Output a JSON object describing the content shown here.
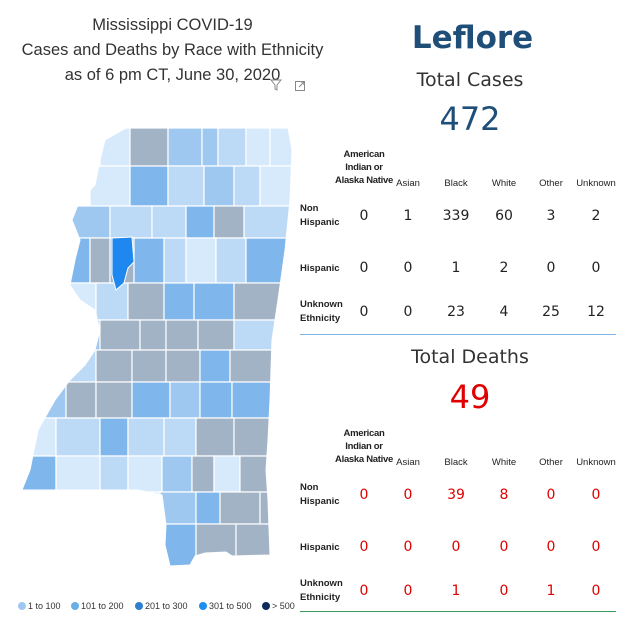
{
  "title": {
    "line1": "Mississippi COVID-19",
    "line2": "Cases and Deaths by Race with Ethnicity",
    "line3": "as of 6 pm CT, June 30, 2020"
  },
  "county": "Leflore",
  "cases": {
    "heading": "Total Cases",
    "total": "472",
    "color": "#1f4e79",
    "columns": [
      "American Indian or Alaska Native",
      "Asian",
      "Black",
      "White",
      "Other",
      "Unknown"
    ],
    "rows": [
      {
        "label": "Non Hispanic",
        "values": [
          "0",
          "1",
          "339",
          "60",
          "3",
          "2"
        ]
      },
      {
        "label": "Hispanic",
        "values": [
          "0",
          "0",
          "1",
          "2",
          "0",
          "0"
        ]
      },
      {
        "label": "Unknown Ethnicity",
        "values": [
          "0",
          "0",
          "23",
          "4",
          "25",
          "12"
        ]
      }
    ]
  },
  "deaths": {
    "heading": "Total Deaths",
    "total": "49",
    "color": "#e00000",
    "columns": [
      "American Indian or Alaska Native",
      "Asian",
      "Black",
      "White",
      "Other",
      "Unknown"
    ],
    "rows": [
      {
        "label": "Non Hispanic",
        "values": [
          "0",
          "0",
          "39",
          "8",
          "0",
          "0"
        ]
      },
      {
        "label": "Hispanic",
        "values": [
          "0",
          "0",
          "0",
          "0",
          "0",
          "0"
        ]
      },
      {
        "label": "Unknown Ethnicity",
        "values": [
          "0",
          "0",
          "1",
          "0",
          "1",
          "0"
        ]
      }
    ]
  },
  "legend": [
    {
      "label": "1 to 100",
      "color": "#9fc8f0"
    },
    {
      "label": "101 to 200",
      "color": "#6aaee8"
    },
    {
      "label": "201 to 300",
      "color": "#2f7fd0"
    },
    {
      "label": "301 to 500",
      "color": "#1e8ff0"
    },
    {
      "label": "> 500",
      "color": "#0d2a5c"
    }
  ],
  "map_colors": {
    "light": "#d6eafc",
    "lightmid": "#bcdaf6",
    "mid": "#9fc8f0",
    "blue": "#7fb6ec",
    "gray": "#a3b3c6",
    "dark": "#8b9db2",
    "highlight": "#1e88f0"
  },
  "icons": [
    "filter-icon",
    "focus-mode-icon"
  ]
}
